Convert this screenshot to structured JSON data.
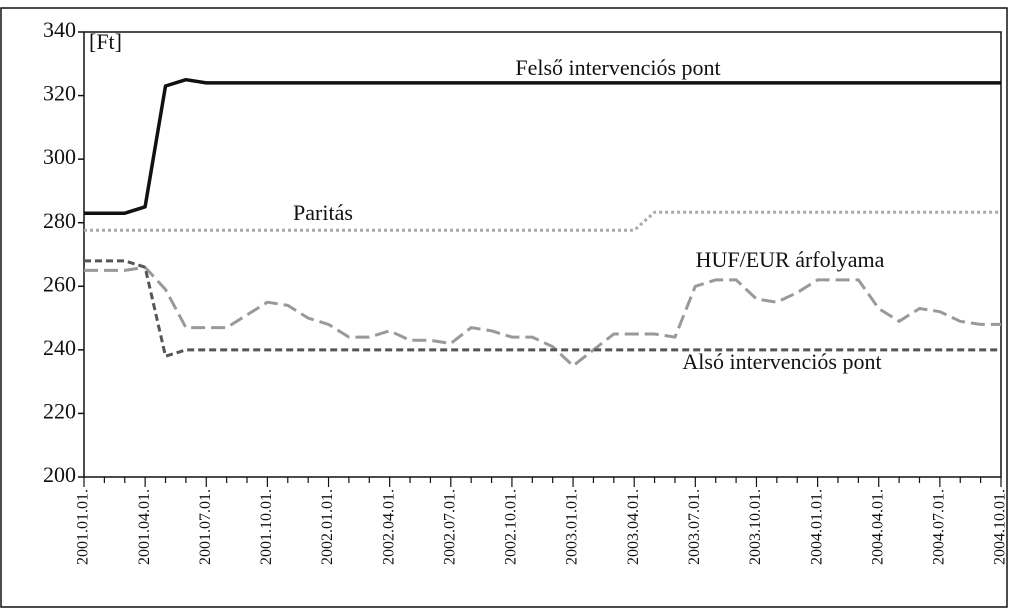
{
  "chart_data": {
    "type": "line",
    "y_unit_label": "[Ft]",
    "categories": [
      "2001.01.01.",
      null,
      null,
      "2001.04.01.",
      null,
      null,
      "2001.07.01.",
      null,
      null,
      "2001.10.01.",
      null,
      null,
      "2002.01.01.",
      null,
      null,
      "2002.04.01.",
      null,
      null,
      "2002.07.01.",
      null,
      null,
      "2002.10.01.",
      null,
      null,
      "2003.01.01.",
      null,
      null,
      "2003.04.01.",
      null,
      null,
      "2003.07.01.",
      null,
      null,
      "2003.10.01.",
      null,
      null,
      "2004.01.01.",
      null,
      null,
      "2004.04.01.",
      null,
      null,
      "2004.07.01.",
      null,
      null,
      "2004.10.01."
    ],
    "series": [
      {
        "name": "Felső intervenciós pont",
        "color": "#111111",
        "style": "solid",
        "values": [
          283,
          283,
          283,
          285,
          323,
          325,
          324,
          324,
          324,
          324,
          324,
          324,
          324,
          324,
          324,
          324,
          324,
          324,
          324,
          324,
          324,
          324,
          324,
          324,
          324,
          324,
          324,
          324,
          324,
          324,
          324,
          324,
          324,
          324,
          324,
          324,
          324,
          324,
          324,
          324,
          324,
          324,
          324,
          324,
          324,
          324
        ]
      },
      {
        "name": "Paritás",
        "color": "#aaaaaa",
        "style": "dotted",
        "values": [
          277.6,
          277.6,
          277.6,
          277.6,
          277.6,
          277.6,
          277.6,
          277.6,
          277.6,
          277.6,
          277.6,
          277.6,
          277.6,
          277.6,
          277.6,
          277.6,
          277.6,
          277.6,
          277.6,
          277.6,
          277.6,
          277.6,
          277.6,
          277.6,
          277.6,
          277.6,
          277.6,
          277.6,
          283.3,
          283.3,
          283.3,
          283.3,
          283.3,
          283.3,
          283.3,
          283.3,
          283.3,
          283.3,
          283.3,
          283.3,
          283.3,
          283.3,
          283.3,
          283.3,
          283.3,
          283.3
        ]
      },
      {
        "name": "HUF/EUR árfolyama",
        "color": "#999999",
        "style": "longdash",
        "values": [
          265,
          265,
          265,
          266,
          259,
          247,
          247,
          247,
          251,
          255,
          254,
          250,
          248,
          244,
          244,
          246,
          243,
          243,
          242,
          247,
          246,
          244,
          244,
          241,
          235,
          240,
          245,
          245,
          245,
          244,
          260,
          262,
          262,
          256,
          255,
          258,
          262,
          262,
          262,
          253,
          249,
          253,
          252,
          249,
          248,
          248
        ]
      },
      {
        "name": "Alsó intervenciós pont",
        "color": "#555555",
        "style": "dashed",
        "values": [
          268,
          268,
          268,
          266,
          238,
          240,
          240,
          240,
          240,
          240,
          240,
          240,
          240,
          240,
          240,
          240,
          240,
          240,
          240,
          240,
          240,
          240,
          240,
          240,
          240,
          240,
          240,
          240,
          240,
          240,
          240,
          240,
          240,
          240,
          240,
          240,
          240,
          240,
          240,
          240,
          240,
          240,
          240,
          240,
          240,
          240
        ]
      }
    ],
    "ylim": [
      200,
      340
    ],
    "yticks": [
      200,
      220,
      240,
      260,
      280,
      300,
      320,
      340
    ]
  }
}
